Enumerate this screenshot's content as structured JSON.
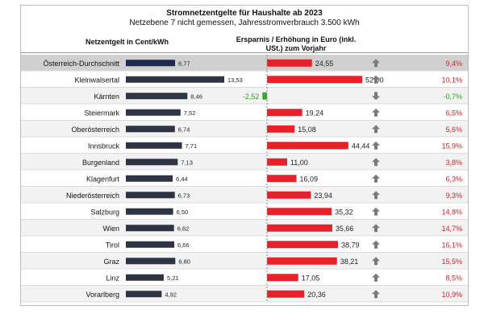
{
  "chart_data": {
    "type": "table",
    "title": "Stromnetzentgelte  für Haushalte ab 2023",
    "subtitle": "Netzebene  7 nicht gemessen,  Jahresstromverbrauch   3.500 kWh",
    "left_header": "Netzentgelt in Cent/kWh",
    "right_header_line1": "Ersparnis / Erhöhung in Euro (inkl.",
    "right_header_line2": "USt.) zum Vorjahr",
    "rows": [
      {
        "name": "Österreich-Durchschnitt",
        "cent_label": "6,77",
        "cent": 6.77,
        "euro_label": "24,55",
        "euro": 24.55,
        "trend": "up",
        "pct_label": "9,4%",
        "highlight": true
      },
      {
        "name": "Kleinwalsertal",
        "cent_label": "13,53",
        "cent": 13.53,
        "euro_label": "52,00",
        "euro": 52.0,
        "trend": "up",
        "pct_label": "10,1%"
      },
      {
        "name": "Kärnten",
        "cent_label": "8,46",
        "cent": 8.46,
        "euro_label": "-2,52",
        "euro": -2.52,
        "trend": "down",
        "pct_label": "-0,7%"
      },
      {
        "name": "Steiermark",
        "cent_label": "7,52",
        "cent": 7.52,
        "euro_label": "19,24",
        "euro": 19.24,
        "trend": "up",
        "pct_label": "6,5%"
      },
      {
        "name": "Oberösterreich",
        "cent_label": "6,74",
        "cent": 6.74,
        "euro_label": "15,08",
        "euro": 15.08,
        "trend": "up",
        "pct_label": "5,6%"
      },
      {
        "name": "Innsbruck",
        "cent_label": "7,71",
        "cent": 7.71,
        "euro_label": "44,44",
        "euro": 44.44,
        "trend": "up",
        "pct_label": "15,9%"
      },
      {
        "name": "Burgenland",
        "cent_label": "7,13",
        "cent": 7.13,
        "euro_label": "11,00",
        "euro": 11.0,
        "trend": "up",
        "pct_label": "3,8%"
      },
      {
        "name": "Klagenfurt",
        "cent_label": "6,44",
        "cent": 6.44,
        "euro_label": "16,09",
        "euro": 16.09,
        "trend": "up",
        "pct_label": "6,3%"
      },
      {
        "name": "Niederösterreich",
        "cent_label": "6,73",
        "cent": 6.73,
        "euro_label": "23,94",
        "euro": 23.94,
        "trend": "up",
        "pct_label": "9,3%"
      },
      {
        "name": "Salzburg",
        "cent_label": "6,50",
        "cent": 6.5,
        "euro_label": "35,32",
        "euro": 35.32,
        "trend": "up",
        "pct_label": "14,8%"
      },
      {
        "name": "Wien",
        "cent_label": "6,62",
        "cent": 6.62,
        "euro_label": "35,66",
        "euro": 35.66,
        "trend": "up",
        "pct_label": "14,7%"
      },
      {
        "name": "Tirol",
        "cent_label": "6,66",
        "cent": 6.66,
        "euro_label": "38,79",
        "euro": 38.79,
        "trend": "up",
        "pct_label": "16,1%"
      },
      {
        "name": "Graz",
        "cent_label": "6,80",
        "cent": 6.8,
        "euro_label": "38,21",
        "euro": 38.21,
        "trend": "up",
        "pct_label": "15,5%"
      },
      {
        "name": "Linz",
        "cent_label": "5,21",
        "cent": 5.21,
        "euro_label": "17,05",
        "euro": 17.05,
        "trend": "up",
        "pct_label": "8,5%"
      },
      {
        "name": "Vorarlberg",
        "cent_label": "4,92",
        "cent": 4.92,
        "euro_label": "20,36",
        "euro": 20.36,
        "trend": "up",
        "pct_label": "10,9%"
      }
    ],
    "cent_range": [
      0,
      13.53
    ],
    "euro_range": [
      0,
      52.0
    ],
    "colors": {
      "bar_navy": "#1f2a4e",
      "bar_dark": "#2f3445",
      "bar_red": "#e8202a",
      "bar_green": "#3aa63a",
      "pct_red": "#d21f26",
      "pct_green": "#2e9a2e",
      "arrow_gray": "#7a7a7a",
      "highlight_bg": "#d0d0d0",
      "stripe_bg": "#f2f2f2"
    }
  }
}
